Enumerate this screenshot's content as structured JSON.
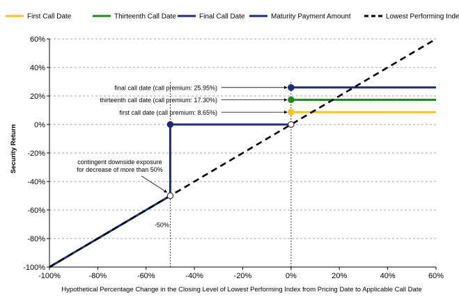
{
  "chart_data": {
    "type": "line",
    "xlabel": "Hypothetical Percentage Change in the Closing Level of Lowest Performing Index from Pricing Date to Applicable Call Date",
    "ylabel": "Security Return",
    "xlim": [
      -100,
      60
    ],
    "ylim": [
      -100,
      60
    ],
    "x_ticks": [
      -100,
      -80,
      -60,
      -40,
      -20,
      0,
      20,
      40,
      60
    ],
    "y_ticks": [
      -100,
      -80,
      -60,
      -40,
      -20,
      0,
      20,
      40,
      60
    ],
    "tick_suffix": "%",
    "grid": "horizontal dashed",
    "legend_position": "top",
    "colors": {
      "first": "#f5c22c",
      "thirteenth": "#1e8a1e",
      "final": "#1f2a78",
      "maturity": "#1f2a78",
      "index": "#000000"
    },
    "series": [
      {
        "name": "First Call Date",
        "key": "first",
        "style": "solid",
        "points": [
          [
            0,
            8.65
          ],
          [
            60,
            8.65
          ]
        ]
      },
      {
        "name": "Thirteenth Call Date",
        "key": "thirteenth",
        "style": "solid",
        "points": [
          [
            0,
            17.3
          ],
          [
            60,
            17.3
          ]
        ]
      },
      {
        "name": "Final Call Date",
        "key": "final",
        "style": "solid",
        "points": [
          [
            0,
            25.95
          ],
          [
            60,
            25.95
          ]
        ]
      },
      {
        "name": "Maturity Payment Amount",
        "key": "maturity",
        "style": "solid",
        "points": [
          [
            -100,
            -100
          ],
          [
            -50,
            -50
          ],
          [
            -50,
            0
          ],
          [
            0,
            0
          ]
        ]
      },
      {
        "name": "Lowest Performing Index",
        "key": "index",
        "style": "dashed",
        "points": [
          [
            -100,
            -100
          ],
          [
            60,
            60
          ]
        ]
      }
    ],
    "markers": [
      {
        "x": 0,
        "y": 25.95,
        "key": "final",
        "filled": true
      },
      {
        "x": 0,
        "y": 17.3,
        "key": "thirteenth",
        "filled": true
      },
      {
        "x": 0,
        "y": 8.65,
        "key": "first",
        "filled": true
      },
      {
        "x": 0,
        "y": 0,
        "key": "maturity",
        "filled": false
      },
      {
        "x": -50,
        "y": 0,
        "key": "maturity",
        "filled": true
      },
      {
        "x": -50,
        "y": -50,
        "key": "maturity",
        "filled": false
      }
    ],
    "vlines": [
      -50,
      0
    ],
    "annotations": [
      {
        "text": "final call date (call premium: 25.95%)",
        "x": 0,
        "y": 25.95
      },
      {
        "text": "thirteenth call date (call premium: 17.30%)",
        "x": 0,
        "y": 17.3
      },
      {
        "text": "first call date (call premium: 8.65%)",
        "x": 0,
        "y": 8.65
      }
    ],
    "contingent_note": [
      "contingent downside exposure",
      "for decrease of more than 50%"
    ],
    "barrier_label": "-50%"
  }
}
